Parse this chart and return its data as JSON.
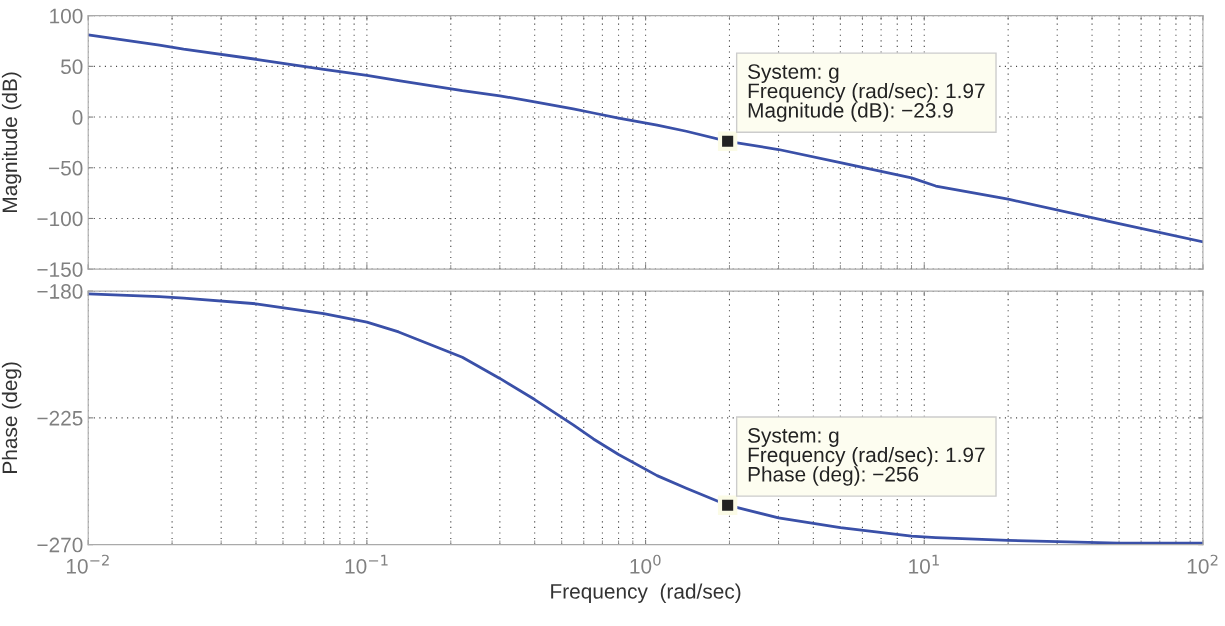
{
  "chart_data": [
    {
      "type": "line",
      "ylabel": "Magnitude (dB)",
      "log": "x",
      "grid": true,
      "tick_labels": "y",
      "marker": "none",
      "line_style": "solid",
      "x": [
        0.01,
        0.018,
        0.022,
        0.04,
        0.07,
        0.1,
        0.13,
        0.22,
        0.3,
        0.4,
        0.55,
        0.65,
        0.8,
        1.1,
        1.4,
        1.97,
        3,
        5,
        9,
        11,
        20,
        50,
        100
      ],
      "series": [
        {
          "color": "#3a50a8",
          "values": [
            81,
            71,
            67,
            57,
            47,
            41,
            36,
            26,
            21,
            15,
            8,
            4,
            -1,
            -8,
            -14,
            -23.9,
            -32,
            -45,
            -60,
            -68,
            -81,
            -105,
            -123
          ]
        }
      ],
      "xlim": [
        0.01,
        100
      ],
      "xticks": [
        {
          "value": 0.01,
          "label": null
        },
        {
          "value": 0.1,
          "label": null
        },
        {
          "value": 1,
          "label": null
        },
        {
          "value": 10,
          "label": null
        },
        {
          "value": 100,
          "label": null
        }
      ],
      "ylim": [
        -150,
        100
      ],
      "yticks": [
        {
          "value": -150,
          "label": "−150"
        },
        {
          "value": -100,
          "label": "−100"
        },
        {
          "value": -50,
          "label": "−50"
        },
        0,
        50,
        100
      ],
      "annotations": [
        {
          "text": "System: g\nFrequency (rad/sec): 1.97\nMagnitude (dB): −23.9",
          "x": 1.97,
          "y": -23.9
        }
      ]
    },
    {
      "type": "line",
      "ylabel": "Phase (deg)",
      "xlabel": "Frequency  (rad/sec)",
      "log": "x",
      "grid": true,
      "marker": "none",
      "line_style": "solid",
      "x": [
        0.01,
        0.018,
        0.022,
        0.04,
        0.07,
        0.1,
        0.13,
        0.22,
        0.3,
        0.4,
        0.55,
        0.65,
        0.8,
        1.1,
        1.4,
        1.97,
        3,
        5,
        9,
        11,
        20,
        50,
        100
      ],
      "series": [
        {
          "color": "#3a50a8",
          "values": [
            -181,
            -182,
            -182.5,
            -184.5,
            -188,
            -191,
            -194.5,
            -203.5,
            -211,
            -218.5,
            -227.5,
            -232.5,
            -238,
            -245.5,
            -250,
            -256,
            -260.5,
            -264,
            -267,
            -267.5,
            -268.5,
            -269.5,
            -269.5
          ]
        }
      ],
      "xlim": [
        0.01,
        100
      ],
      "xticks": [
        {
          "value": 0.01,
          "label": "10$^{−2}$"
        },
        {
          "value": 0.1,
          "label": "10$^{−1}$"
        },
        {
          "value": 1,
          "label": "10$^{0}$"
        },
        {
          "value": 10,
          "label": "10$^{1}$"
        },
        {
          "value": 100,
          "label": "10$^{2}$"
        }
      ],
      "ylim": [
        -270,
        -180
      ],
      "yticks": [
        {
          "value": -270,
          "label": "−270"
        },
        {
          "value": -225,
          "label": "−225"
        },
        {
          "value": -180,
          "label": "−180"
        }
      ],
      "annotations": [
        {
          "text": "System: g\nFrequency (rad/sec): 1.97\nPhase (deg): −256",
          "x": 1.97,
          "y": -256
        }
      ]
    }
  ]
}
